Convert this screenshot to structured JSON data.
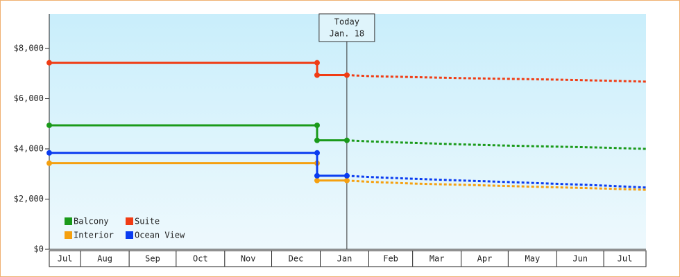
{
  "chart_data": {
    "type": "line",
    "ylim": [
      0,
      9380
    ],
    "yticks": [
      {
        "value": 0,
        "label": "$0"
      },
      {
        "value": 2000,
        "label": "$2,000"
      },
      {
        "value": 4000,
        "label": "$4,000"
      },
      {
        "value": 6000,
        "label": "$6,000"
      },
      {
        "value": 8000,
        "label": "$8,000"
      }
    ],
    "xlim": [
      0,
      381
    ],
    "xticks": [
      {
        "value": 0,
        "label": "Jul"
      },
      {
        "value": 20,
        "label": "Aug"
      },
      {
        "value": 51,
        "label": "Sep"
      },
      {
        "value": 81,
        "label": "Oct"
      },
      {
        "value": 112,
        "label": "Nov"
      },
      {
        "value": 142,
        "label": "Dec"
      },
      {
        "value": 173,
        "label": "Jan"
      },
      {
        "value": 204,
        "label": "Feb"
      },
      {
        "value": 232,
        "label": "Mar"
      },
      {
        "value": 263,
        "label": "Apr"
      },
      {
        "value": 293,
        "label": "May"
      },
      {
        "value": 324,
        "label": "Jun"
      },
      {
        "value": 354,
        "label": "Jul"
      }
    ],
    "annotation": {
      "x": 190,
      "lines": [
        "Today",
        "Jan. 18"
      ]
    },
    "legend": "lower left",
    "series": [
      {
        "name": "Balcony",
        "color": "#1a9a1a",
        "x": [
          0,
          171,
          171,
          190
        ],
        "values": [
          4940,
          4940,
          4340,
          4340
        ],
        "forecast": {
          "x": [
            190,
            204,
            232,
            263,
            293,
            324,
            354,
            381
          ],
          "values": [
            4340,
            4300,
            4240,
            4180,
            4130,
            4090,
            4050,
            4000
          ]
        }
      },
      {
        "name": "Suite",
        "color": "#f03c14",
        "x": [
          0,
          171,
          171,
          190
        ],
        "values": [
          7430,
          7430,
          6940,
          6940
        ],
        "forecast": {
          "x": [
            190,
            204,
            232,
            263,
            293,
            324,
            354,
            381
          ],
          "values": [
            6940,
            6900,
            6860,
            6820,
            6790,
            6760,
            6720,
            6680
          ]
        }
      },
      {
        "name": "Interior",
        "color": "#f5a00f",
        "x": [
          0,
          171,
          171,
          190
        ],
        "values": [
          3430,
          3430,
          2740,
          2740
        ],
        "forecast": {
          "x": [
            190,
            204,
            232,
            263,
            293,
            324,
            354,
            381
          ],
          "values": [
            2740,
            2690,
            2620,
            2570,
            2520,
            2470,
            2420,
            2370
          ]
        }
      },
      {
        "name": "Ocean View",
        "color": "#0a3cf0",
        "x": [
          0,
          171,
          171,
          190
        ],
        "values": [
          3840,
          3840,
          2930,
          2930
        ],
        "forecast": {
          "x": [
            190,
            204,
            232,
            263,
            293,
            324,
            354,
            381
          ],
          "values": [
            2930,
            2880,
            2810,
            2740,
            2680,
            2610,
            2540,
            2460
          ]
        }
      }
    ]
  }
}
